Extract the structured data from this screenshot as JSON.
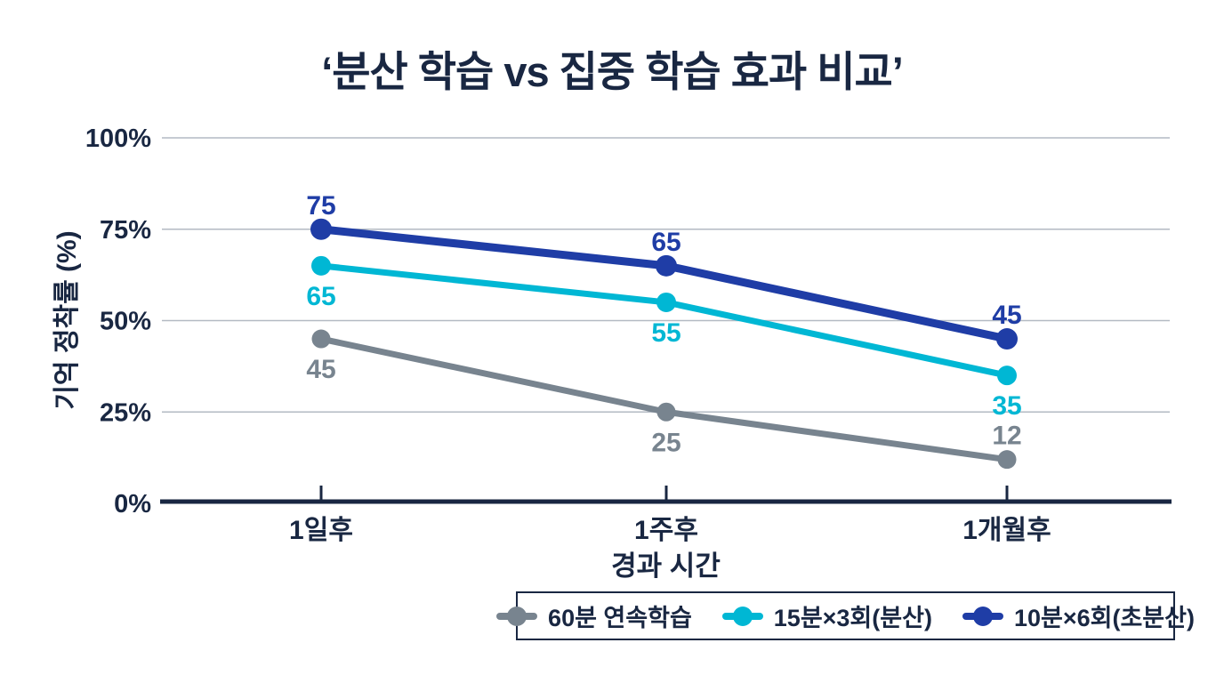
{
  "title": "‘분산 학습 vs 집중 학습 효과 비교’",
  "chart_data": {
    "type": "line",
    "title": "‘분산 학습 vs 집중 학습 효과 비교’",
    "categories": [
      "1일후",
      "1주후",
      "1개월후"
    ],
    "series": [
      {
        "name": "60분 연속학습",
        "values": [
          45,
          25,
          12
        ],
        "color": "#78848f",
        "label_placement": [
          "below",
          "below",
          "above"
        ]
      },
      {
        "name": "15분×3회(분산)",
        "values": [
          65,
          55,
          35
        ],
        "color": "#00b7d4",
        "label_placement": [
          "below",
          "below",
          "below"
        ]
      },
      {
        "name": "10분×6회(초분산)",
        "values": [
          75,
          65,
          45
        ],
        "color": "#1f3da6",
        "label_placement": [
          "above",
          "above",
          "above"
        ]
      }
    ],
    "xlabel": "경과 시간",
    "ylabel": "기억 정착률 (%)",
    "ylim": [
      0,
      100
    ],
    "yticks": [
      0,
      25,
      50,
      75,
      100
    ],
    "ytick_labels": [
      "0%",
      "25%",
      "50%",
      "75%",
      "100%"
    ],
    "grid": true,
    "legend_position": "bottom-right",
    "data_labels_shown": true
  },
  "colors": {
    "text": "#192742",
    "axis": "#192742",
    "gridline": "#b3bac3",
    "background": "#ffffff"
  }
}
